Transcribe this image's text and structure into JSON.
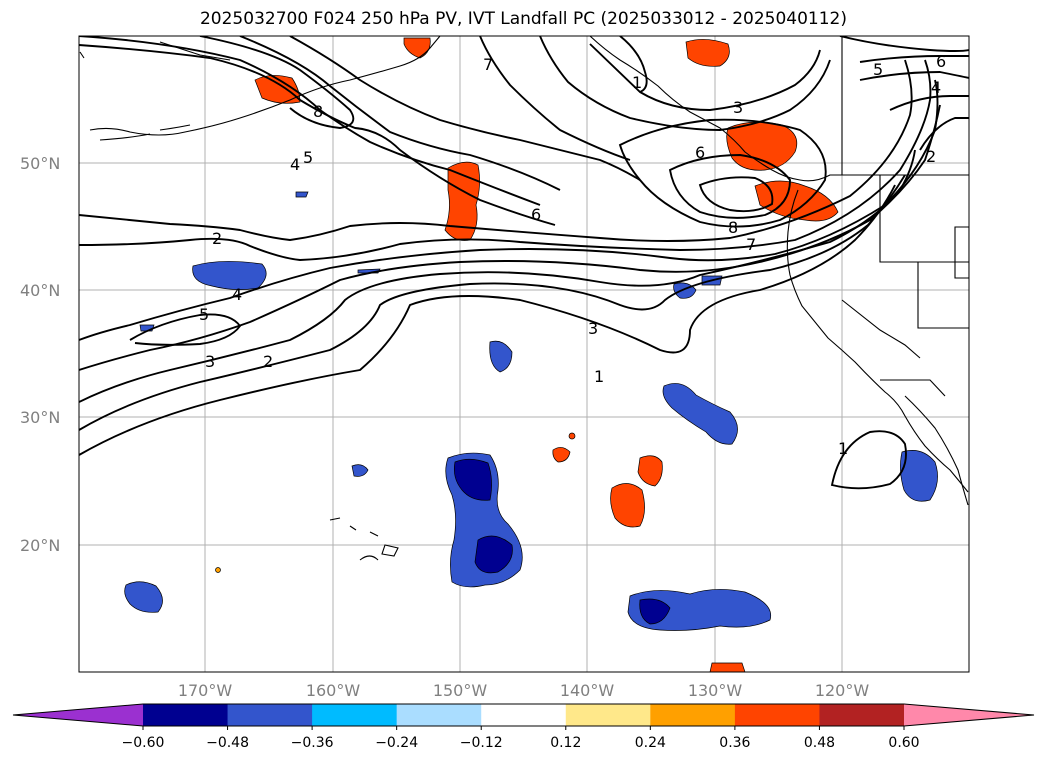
{
  "title": "2025032700 F024 250 hPa PV, IVT Landfall PC (2025033012 - 2025040112)",
  "lat_labels": [
    "50°N",
    "40°N",
    "30°N",
    "20°N"
  ],
  "lon_labels": [
    "170°W",
    "160°W",
    "150°W",
    "140°W",
    "130°W",
    "120°W"
  ],
  "colorbar": {
    "ticks": [
      "−0.60",
      "−0.48",
      "−0.36",
      "−0.24",
      "−0.12",
      "0.12",
      "0.24",
      "0.36",
      "0.48",
      "0.60"
    ],
    "colors": [
      "#9b30d0",
      "#000090",
      "#3355cc",
      "#00bbff",
      "#aaddff",
      "#ffffff",
      "#ffe88a",
      "#ffa000",
      "#ff4400",
      "#b22222",
      "#ff88aa"
    ]
  },
  "contour_labels": [
    "8",
    "5",
    "4",
    "7",
    "2",
    "4",
    "5",
    "3",
    "2",
    "1",
    "6",
    "3",
    "6",
    "8",
    "7",
    "5",
    "4",
    "2",
    "1",
    "3",
    "1",
    "6"
  ]
}
